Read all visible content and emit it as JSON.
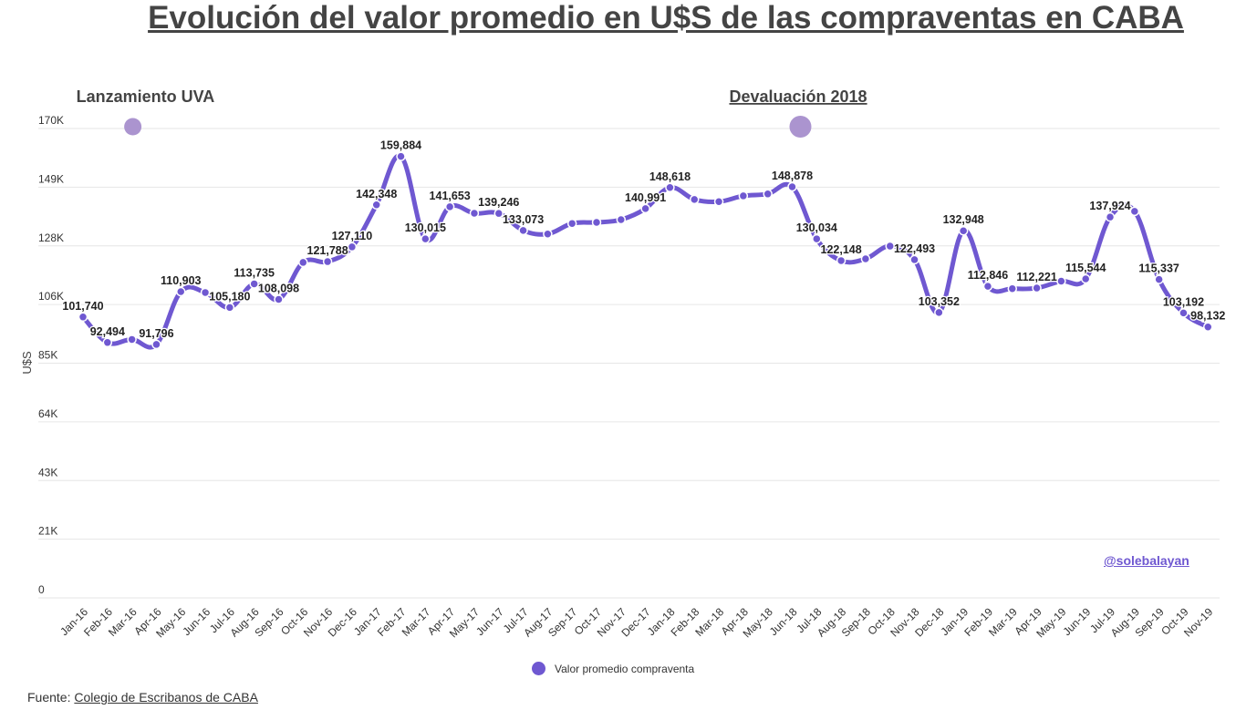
{
  "title": "Evolución del valor promedio en U$S de las compraventas en CABA",
  "legend": {
    "label": "Valor promedio compraventa"
  },
  "source": {
    "prefix": "Fuente:",
    "link": "Colegio de  Escribanos de CABA"
  },
  "handle": "@solebalayan",
  "colors": {
    "line": "#6f58d1",
    "marker": "#ab94cf",
    "grid": "#e6e6e6",
    "text": "#333333"
  },
  "chart_data": {
    "type": "line",
    "ylabel": "U$S",
    "ylim": [
      0,
      170000
    ],
    "yticks": [
      {
        "value": 0,
        "label": "0"
      },
      {
        "value": 21250,
        "label": "21K"
      },
      {
        "value": 42500,
        "label": "43K"
      },
      {
        "value": 63750,
        "label": "64K"
      },
      {
        "value": 85000,
        "label": "85K"
      },
      {
        "value": 106250,
        "label": "106K"
      },
      {
        "value": 127500,
        "label": "128K"
      },
      {
        "value": 148750,
        "label": "149K"
      },
      {
        "value": 170000,
        "label": "170K"
      }
    ],
    "categories": [
      "Jan-16",
      "Feb-16",
      "Mar-16",
      "Apr-16",
      "May-16",
      "Jun-16",
      "Jul-16",
      "Aug-16",
      "Sep-16",
      "Oct-16",
      "Nov-16",
      "Dec-16",
      "Jan-17",
      "Feb-17",
      "Mar-17",
      "Apr-17",
      "May-17",
      "Jun-17",
      "Jul-17",
      "Aug-17",
      "Sep-17",
      "Oct-17",
      "Nov-17",
      "Dec-17",
      "Jan-18",
      "Feb-18",
      "Mar-18",
      "Apr-18",
      "May-18",
      "Jun-18",
      "Jul-18",
      "Aug-18",
      "Sep-18",
      "Oct-18",
      "Nov-18",
      "Dec-18",
      "Jan-19",
      "Feb-19",
      "Mar-19",
      "Apr-19",
      "May-19",
      "Jun-19",
      "Jul-19",
      "Aug-19",
      "Sep-19",
      "Oct-19",
      "Nov-19"
    ],
    "series": [
      {
        "name": "Valor promedio compraventa",
        "values": [
          101740,
          92494,
          93600,
          91796,
          110903,
          110600,
          105180,
          113735,
          108098,
          121500,
          121788,
          127110,
          142348,
          159884,
          130015,
          141653,
          139300,
          139246,
          133073,
          131800,
          135600,
          136000,
          137000,
          140991,
          148618,
          144300,
          143500,
          145600,
          146300,
          148878,
          130034,
          122148,
          122800,
          127400,
          122493,
          103352,
          132948,
          112846,
          112000,
          112221,
          114700,
          115544,
          137924,
          140000,
          115337,
          103192,
          98132
        ]
      }
    ],
    "data_labels": [
      {
        "index": 0,
        "text": "101,740"
      },
      {
        "index": 1,
        "text": "92,494"
      },
      {
        "index": 3,
        "text": "91,796"
      },
      {
        "index": 4,
        "text": "110,903"
      },
      {
        "index": 6,
        "text": "105,180"
      },
      {
        "index": 7,
        "text": "113,735"
      },
      {
        "index": 8,
        "text": "108,098"
      },
      {
        "index": 10,
        "text": "121,788"
      },
      {
        "index": 11,
        "text": "127,110"
      },
      {
        "index": 12,
        "text": "142,348"
      },
      {
        "index": 13,
        "text": "159,884"
      },
      {
        "index": 14,
        "text": "130,015"
      },
      {
        "index": 15,
        "text": "141,653"
      },
      {
        "index": 17,
        "text": "139,246"
      },
      {
        "index": 18,
        "text": "133,073"
      },
      {
        "index": 23,
        "text": "140,991"
      },
      {
        "index": 24,
        "text": "148,618"
      },
      {
        "index": 29,
        "text": "148,878"
      },
      {
        "index": 30,
        "text": "130,034"
      },
      {
        "index": 31,
        "text": "122,148"
      },
      {
        "index": 34,
        "text": "122,493"
      },
      {
        "index": 35,
        "text": "103,352"
      },
      {
        "index": 36,
        "text": "132,948"
      },
      {
        "index": 37,
        "text": "112,846"
      },
      {
        "index": 39,
        "text": "112,221"
      },
      {
        "index": 41,
        "text": "115,544"
      },
      {
        "index": 42,
        "text": "137,924"
      },
      {
        "index": 44,
        "text": "115,337"
      },
      {
        "index": 45,
        "text": "103,192"
      },
      {
        "index": 46,
        "text": "98,132"
      }
    ],
    "annotations": [
      {
        "label": "Lanzamiento UVA",
        "x": "Mar-16",
        "y": 170000,
        "underline": false,
        "marker": "small"
      },
      {
        "label": "Devaluación 2018",
        "x": "Jun-18",
        "y": 170000,
        "underline": true,
        "marker": "large"
      }
    ],
    "grid": true,
    "legend_position": "bottom-center"
  }
}
